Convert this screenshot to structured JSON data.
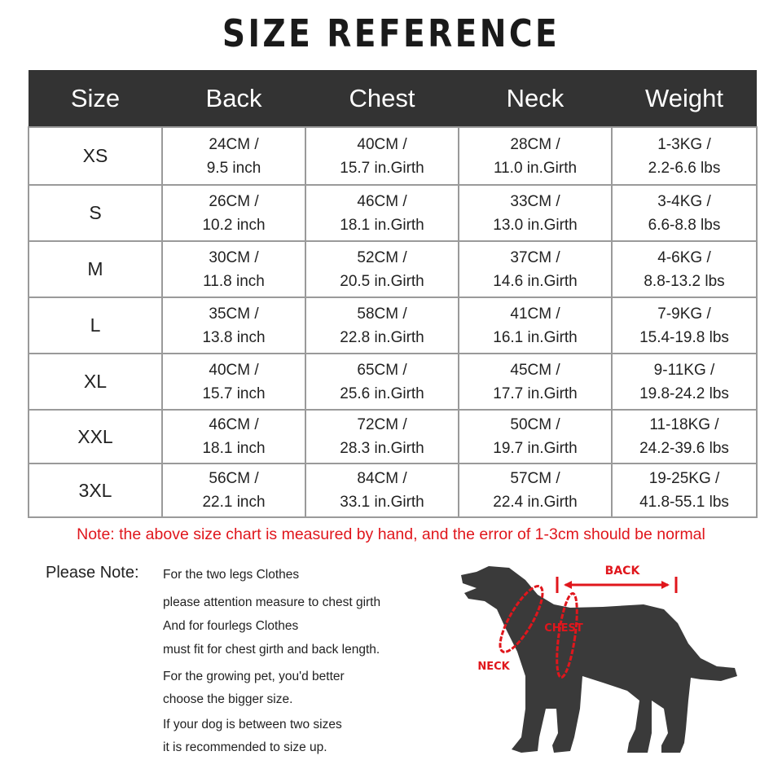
{
  "title": "SIZE REFERENCE",
  "table": {
    "headers": [
      "Size",
      "Back",
      "Chest",
      "Neck",
      "Weight"
    ],
    "rows": [
      [
        "XS",
        "24CM /",
        "9.5 inch",
        "40CM /",
        "15.7 in.Girth",
        "28CM /",
        "11.0 in.Girth",
        "1-3KG /",
        "2.2-6.6 lbs"
      ],
      [
        "S",
        "26CM /",
        "10.2 inch",
        "46CM /",
        "18.1 in.Girth",
        "33CM /",
        "13.0 in.Girth",
        "3-4KG /",
        "6.6-8.8 lbs"
      ],
      [
        "M",
        "30CM /",
        "11.8 inch",
        "52CM /",
        "20.5 in.Girth",
        "37CM /",
        "14.6 in.Girth",
        "4-6KG /",
        "8.8-13.2 lbs"
      ],
      [
        "L",
        "35CM /",
        "13.8 inch",
        "58CM /",
        "22.8 in.Girth",
        "41CM /",
        "16.1 in.Girth",
        "7-9KG /",
        "15.4-19.8 lbs"
      ],
      [
        "XL",
        "40CM /",
        "15.7 inch",
        "65CM /",
        "25.6 in.Girth",
        "45CM /",
        "17.7 in.Girth",
        "9-11KG /",
        "19.8-24.2 lbs"
      ],
      [
        "XXL",
        "46CM /",
        "18.1 inch",
        "72CM /",
        "28.3 in.Girth",
        "50CM /",
        "19.7 in.Girth",
        "11-18KG /",
        "24.2-39.6 lbs"
      ],
      [
        "3XL",
        "56CM /",
        "22.1 inch",
        "84CM /",
        "33.1 in.Girth",
        "57CM /",
        "22.4 in.Girth",
        "19-25KG /",
        "41.8-55.1 lbs"
      ]
    ]
  },
  "note": "Note: the above size chart is measured by hand, and the error of 1-3cm should be normal",
  "please_note": {
    "label": "Please Note:",
    "lines": [
      "For the two legs Clothes",
      "please attention measure to chest girth",
      "And for fourlegs Clothes",
      "must fit for chest girth and back length.",
      "For the growing pet, you'd better",
      "choose the bigger size.",
      "If your dog is between two sizes",
      "it is recommended to size up."
    ]
  },
  "diagram": {
    "back": "BACK",
    "chest": "CHEST",
    "neck": "NECK"
  },
  "colors": {
    "header_bg": "#333333",
    "accent_red": "#e0161c",
    "dog": "#3a3a3a"
  }
}
